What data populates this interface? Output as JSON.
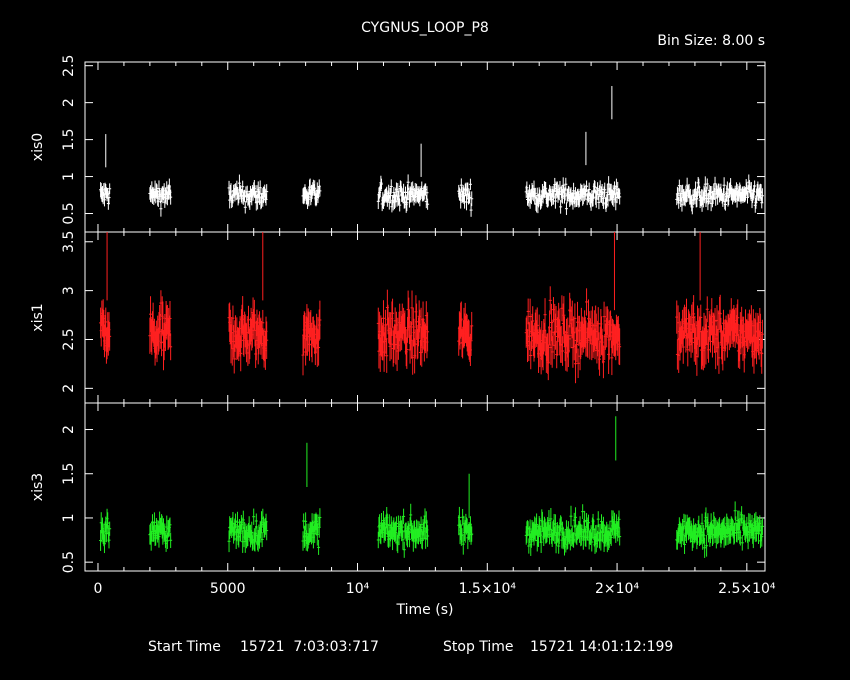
{
  "title": "CYGNUS_LOOP_P8",
  "bin_size": "Bin Size: 8.00 s",
  "footer": {
    "start_label": "Start Time",
    "start_value": "15721  7:03:03:717",
    "stop_label": "Stop Time",
    "stop_value": "15721 14:01:12:199"
  },
  "chart_data": {
    "type": "scatter",
    "xlabel": "Time (s)",
    "xlim": [
      -500,
      25700
    ],
    "x_ticks": [
      {
        "value": 0,
        "label": "0"
      },
      {
        "value": 5000,
        "label": "5000"
      },
      {
        "value": 10000,
        "label": "10⁴"
      },
      {
        "value": 15000,
        "label": "1.5×10⁴"
      },
      {
        "value": 20000,
        "label": "2×10⁴"
      },
      {
        "value": 25000,
        "label": "2.5×10⁴"
      }
    ],
    "series": [
      {
        "name": "xis0",
        "color": "#ffffff",
        "ylim": [
          0.25,
          2.55
        ],
        "ticks": [
          0.5,
          1,
          1.5,
          2,
          2.5
        ],
        "tick_labels": [
          "0.5",
          "1",
          "1.5",
          "2",
          "2.5"
        ],
        "level": 0.75,
        "sigma": 0.13,
        "err": 0.09,
        "outliers": [
          [
            300,
            1.35
          ],
          [
            19800,
            2.0
          ],
          [
            18800,
            1.38
          ],
          [
            12450,
            1.22
          ]
        ]
      },
      {
        "name": "xis1",
        "color": "#ff2020",
        "ylim": [
          1.85,
          3.6
        ],
        "ticks": [
          2,
          2.5,
          3,
          3.5
        ],
        "tick_labels": [
          "2",
          "2.5",
          "3",
          "3.5"
        ],
        "level": 2.55,
        "sigma": 0.22,
        "err": 0.16,
        "outliers": [
          [
            350,
            3.3
          ],
          [
            6350,
            3.3
          ],
          [
            19900,
            3.2
          ],
          [
            23200,
            3.3
          ]
        ]
      },
      {
        "name": "xis3",
        "color": "#22ee22",
        "ylim": [
          0.4,
          2.3
        ],
        "ticks": [
          0.5,
          1,
          1.5,
          2
        ],
        "tick_labels": [
          "0.5",
          "1",
          "1.5",
          "2"
        ],
        "level": 0.85,
        "sigma": 0.14,
        "err": 0.1,
        "outliers": [
          [
            8050,
            1.6
          ],
          [
            19950,
            1.9
          ],
          [
            14300,
            1.25
          ]
        ]
      }
    ],
    "segments": [
      [
        100,
        450
      ],
      [
        2000,
        2800
      ],
      [
        5050,
        6500
      ],
      [
        7900,
        8550
      ],
      [
        10800,
        12700
      ],
      [
        13900,
        14400
      ],
      [
        16500,
        20100
      ],
      [
        22300,
        25600
      ]
    ]
  }
}
